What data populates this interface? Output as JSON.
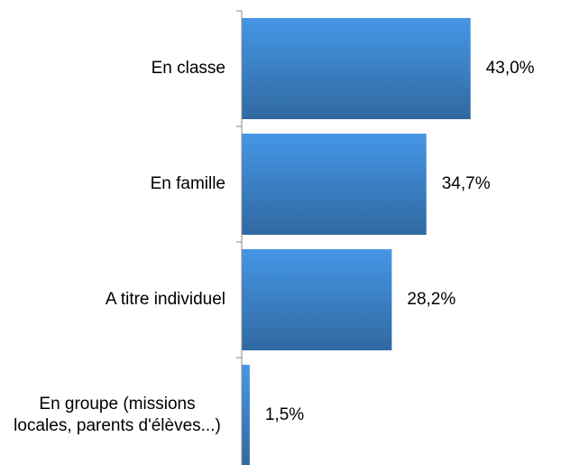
{
  "chart_data": {
    "type": "barh",
    "categories": [
      "En classe",
      "En famille",
      "A titre individuel",
      "En groupe (missions locales, parents d'élèves...)"
    ],
    "values": [
      43.0,
      34.7,
      28.2,
      1.5
    ],
    "value_labels": [
      "43,0%",
      "34,7%",
      "28,2%",
      "1,5%"
    ],
    "color": "#4596e6"
  }
}
